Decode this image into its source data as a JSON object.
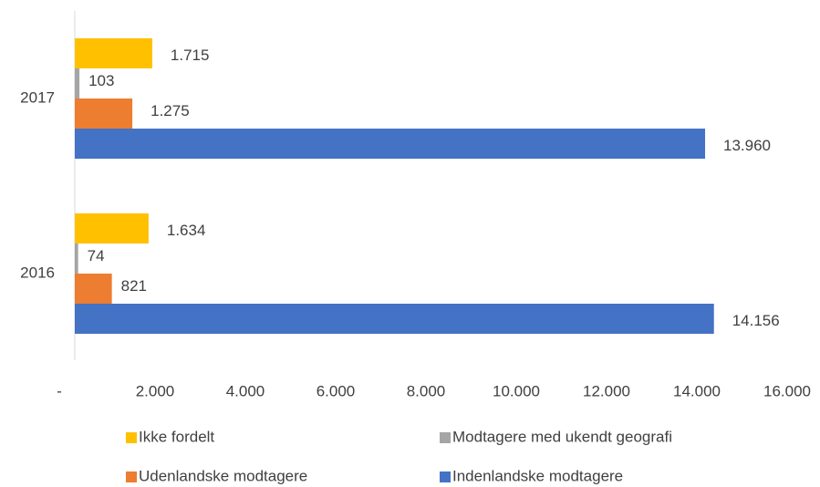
{
  "chart_data": {
    "type": "hbar",
    "categories": [
      "2016",
      "2017"
    ],
    "series": [
      {
        "name": "Ikke fordelt",
        "color": "#ffc000",
        "values": [
          1634,
          1715
        ],
        "value_labels": [
          "1.634",
          "1.715"
        ]
      },
      {
        "name": "Modtagere med ukendt geografi",
        "color": "#a5a5a5",
        "values": [
          74,
          103
        ]
      },
      {
        "name": "Udenlandske modtagere",
        "color": "#ed7d31",
        "values": [
          821,
          1275
        ],
        "value_labels": [
          "821",
          "1.275"
        ]
      },
      {
        "name": "Indenlandske modtagere",
        "color": "#4472c4",
        "values": [
          14156,
          13960
        ],
        "value_labels": [
          "14.156",
          "13.960"
        ]
      }
    ],
    "xlim": [
      0,
      16000
    ],
    "xticks": [
      {
        "value": 0,
        "label": "-"
      },
      {
        "value": 2000,
        "label": "2.000"
      },
      {
        "value": 4000,
        "label": "4.000"
      },
      {
        "value": 6000,
        "label": "6.000"
      },
      {
        "value": 8000,
        "label": "8.000"
      },
      {
        "value": 10000,
        "label": "10.000"
      },
      {
        "value": 12000,
        "label": "12.000"
      },
      {
        "value": 14000,
        "label": "14.000"
      },
      {
        "value": 16000,
        "label": "16.000"
      }
    ],
    "grid": false,
    "legend": "bottom"
  }
}
